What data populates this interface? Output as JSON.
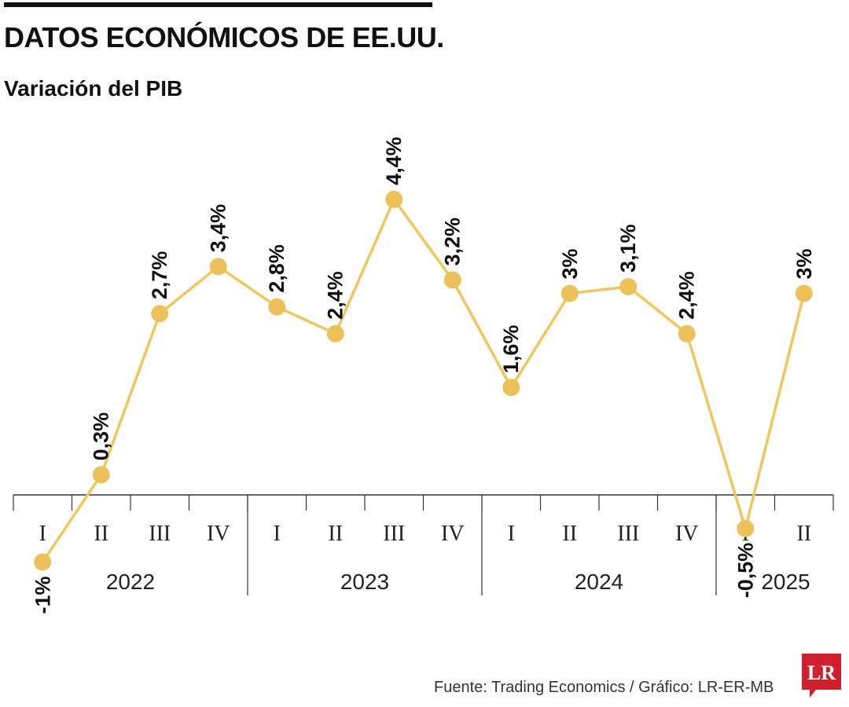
{
  "header": {
    "title": "DATOS ECONÓMICOS DE EE.UU.",
    "subtitle": "Variación del PIB"
  },
  "footer": {
    "source": "Fuente: Trading Economics / Gráfico: LR-ER-MB",
    "logo_text": "LR"
  },
  "colors": {
    "line": "#F0C65E",
    "marker": "#EDC15A",
    "axis": "#333333",
    "text": "#111111",
    "logo": "#D0202E"
  },
  "chart_data": {
    "type": "line",
    "title": "Variación del PIB",
    "quarters": [
      "I",
      "II",
      "III",
      "IV",
      "I",
      "II",
      "III",
      "IV",
      "I",
      "II",
      "III",
      "IV",
      "I",
      "II"
    ],
    "years": [
      {
        "label": "2022",
        "quarters": 4
      },
      {
        "label": "2023",
        "quarters": 4
      },
      {
        "label": "2024",
        "quarters": 4
      },
      {
        "label": "2025",
        "quarters": 2
      }
    ],
    "series": [
      {
        "values": [
          -1,
          0.3,
          2.7,
          3.4,
          2.8,
          2.4,
          4.4,
          3.2,
          1.6,
          3,
          3.1,
          2.4,
          -0.5,
          3
        ],
        "labels": [
          "-1%",
          "0,3%",
          "2,7%",
          "3,4%",
          "2,8%",
          "2,4%",
          "4,4%",
          "3,2%",
          "1,6%",
          "3%",
          "3,1%",
          "2,4%",
          "-0,5%",
          "3%"
        ]
      }
    ],
    "ylim": [
      -1,
      4.4
    ],
    "grid": false,
    "legend": "none"
  }
}
